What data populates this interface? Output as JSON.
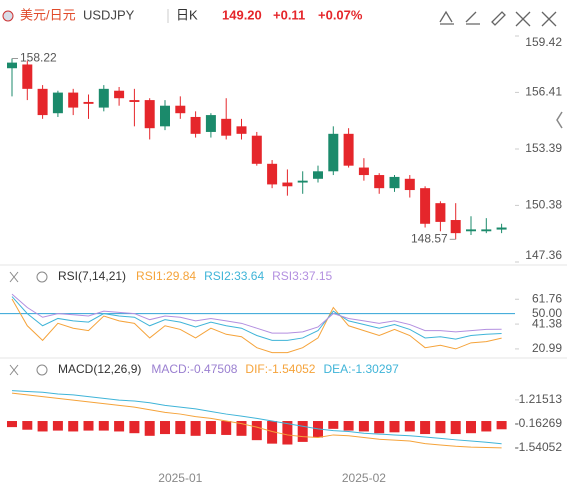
{
  "header": {
    "name": "美元/日元",
    "symbol": "USDJPY",
    "period": "日K",
    "price": "149.20",
    "change": "+0.11",
    "change_pct": "+0.07%"
  },
  "chart_data": [
    {
      "type": "candlestick",
      "up_color": "#1b8a6b",
      "down_color": "#e5262b",
      "categories": [
        null,
        null,
        null,
        null,
        null,
        null,
        null,
        null,
        null,
        null,
        null,
        "2025-01",
        null,
        null,
        null,
        null,
        null,
        null,
        null,
        null,
        null,
        null,
        null,
        "2025-02",
        null,
        null,
        null,
        null,
        null,
        null,
        null,
        null,
        null
      ],
      "candles": [
        {
          "open": 157.7,
          "close": 158.0,
          "high": 158.22,
          "low": 156.2
        },
        {
          "open": 157.9,
          "close": 156.6,
          "high": 158.1,
          "low": 156.0
        },
        {
          "open": 156.6,
          "close": 155.2,
          "high": 156.8,
          "low": 155.0
        },
        {
          "open": 155.3,
          "close": 156.4,
          "high": 156.5,
          "low": 155.1
        },
        {
          "open": 156.4,
          "close": 155.6,
          "high": 156.6,
          "low": 155.2
        },
        {
          "open": 155.9,
          "close": 155.8,
          "high": 156.3,
          "low": 155.0
        },
        {
          "open": 155.6,
          "close": 156.6,
          "high": 156.8,
          "low": 155.4
        },
        {
          "open": 156.5,
          "close": 156.1,
          "high": 156.7,
          "low": 155.7
        },
        {
          "open": 156.0,
          "close": 155.9,
          "high": 156.6,
          "low": 154.6
        },
        {
          "open": 156.0,
          "close": 154.5,
          "high": 156.1,
          "low": 153.9
        },
        {
          "open": 154.6,
          "close": 155.7,
          "high": 156.0,
          "low": 154.4
        },
        {
          "open": 155.7,
          "close": 155.3,
          "high": 156.2,
          "low": 155.0
        },
        {
          "open": 155.1,
          "close": 154.2,
          "high": 155.4,
          "low": 154.0
        },
        {
          "open": 154.3,
          "close": 155.2,
          "high": 155.3,
          "low": 154.0
        },
        {
          "open": 155.0,
          "close": 154.1,
          "high": 156.1,
          "low": 153.9
        },
        {
          "open": 154.6,
          "close": 154.2,
          "high": 155.0,
          "low": 153.9
        },
        {
          "open": 154.1,
          "close": 152.6,
          "high": 154.3,
          "low": 152.5
        },
        {
          "open": 152.6,
          "close": 151.5,
          "high": 152.8,
          "low": 151.3
        },
        {
          "open": 151.6,
          "close": 151.4,
          "high": 152.3,
          "low": 150.9
        },
        {
          "open": 151.6,
          "close": 151.7,
          "high": 152.2,
          "low": 151.0
        },
        {
          "open": 151.8,
          "close": 152.2,
          "high": 152.5,
          "low": 151.6
        },
        {
          "open": 152.2,
          "close": 154.2,
          "high": 154.6,
          "low": 152.0
        },
        {
          "open": 154.2,
          "close": 152.5,
          "high": 154.5,
          "low": 152.4
        },
        {
          "open": 152.4,
          "close": 152.0,
          "high": 152.9,
          "low": 151.7
        },
        {
          "open": 152.0,
          "close": 151.3,
          "high": 152.1,
          "low": 151.0
        },
        {
          "open": 151.3,
          "close": 151.9,
          "high": 152.0,
          "low": 151.1
        },
        {
          "open": 151.8,
          "close": 151.2,
          "high": 152.0,
          "low": 150.8
        },
        {
          "open": 151.3,
          "close": 149.4,
          "high": 151.4,
          "low": 149.2
        },
        {
          "open": 150.5,
          "close": 149.5,
          "high": 150.6,
          "low": 149.0
        },
        {
          "open": 149.6,
          "close": 148.9,
          "high": 150.5,
          "low": 148.57
        },
        {
          "open": 149.0,
          "close": 149.1,
          "high": 149.8,
          "low": 148.8
        },
        {
          "open": 149.0,
          "close": 149.1,
          "high": 149.7,
          "low": 148.9
        },
        {
          "open": 149.09,
          "close": 149.2,
          "high": 149.4,
          "low": 148.9
        }
      ],
      "ylim": [
        147.36,
        159.42
      ],
      "yticks": [
        159.42,
        156.41,
        153.39,
        150.38,
        147.36
      ]
    },
    {
      "type": "line",
      "title": "RSI(7,14,21)",
      "ylim": [
        16,
        71
      ],
      "yticks": [
        61.76,
        {
          "value": 50,
          "label": "50.00",
          "color": "#2fa3d6"
        },
        41.38,
        20.99
      ],
      "series": [
        {
          "name": "RSI1:29.84",
          "color": "#f5a33a",
          "values": [
            62,
            40,
            28,
            42,
            38,
            36,
            48,
            44,
            42,
            30,
            40,
            37,
            30,
            38,
            33,
            31,
            22,
            18,
            18,
            22,
            30,
            55,
            40,
            36,
            32,
            37,
            32,
            22,
            24,
            21,
            26,
            27,
            29.84
          ]
        },
        {
          "name": "RSI2:33.64",
          "color": "#3fb4d8",
          "values": [
            64,
            50,
            40,
            46,
            44,
            43,
            50,
            48,
            47,
            40,
            45,
            43,
            39,
            43,
            40,
            38,
            32,
            28,
            28,
            30,
            36,
            52,
            44,
            41,
            38,
            41,
            37,
            30,
            31,
            29,
            32,
            33,
            33.64
          ]
        },
        {
          "name": "RSI3:37.15",
          "color": "#b38fe0",
          "values": [
            66,
            55,
            47,
            50,
            49,
            48,
            52,
            51,
            50,
            45,
            48,
            47,
            44,
            46,
            44,
            42,
            38,
            34,
            34,
            35,
            39,
            50,
            46,
            44,
            42,
            44,
            41,
            36,
            36,
            35,
            36,
            37,
            37.15
          ]
        }
      ]
    },
    {
      "type": "macd",
      "title": "MACD(12,26,9)",
      "ylim": [
        -2.7,
        2.3
      ],
      "yticks": [
        1.21513,
        -0.16269,
        -1.54052
      ],
      "histogram": {
        "name": "MACD:-0.47508",
        "color": "#e5262b",
        "values": [
          -0.35,
          -0.5,
          -0.6,
          -0.55,
          -0.6,
          -0.55,
          -0.55,
          -0.6,
          -0.7,
          -0.85,
          -0.75,
          -0.75,
          -0.85,
          -0.75,
          -0.8,
          -0.85,
          -1.1,
          -1.3,
          -1.35,
          -1.2,
          -0.95,
          -0.45,
          -0.55,
          -0.6,
          -0.7,
          -0.65,
          -0.6,
          -0.75,
          -0.7,
          -0.75,
          -0.7,
          -0.6,
          -0.47508
        ]
      },
      "series": [
        {
          "name": "DIF:-1.54052",
          "color": "#f5a33a",
          "values": [
            1.6,
            1.5,
            1.4,
            1.3,
            1.2,
            1.1,
            1.0,
            0.9,
            0.8,
            0.65,
            0.5,
            0.4,
            0.25,
            0.15,
            0.0,
            -0.15,
            -0.35,
            -0.6,
            -0.8,
            -0.9,
            -0.95,
            -0.8,
            -0.85,
            -0.95,
            -1.05,
            -1.1,
            -1.15,
            -1.3,
            -1.38,
            -1.45,
            -1.5,
            -1.52,
            -1.54052
          ]
        },
        {
          "name": "DEA:-1.30297",
          "color": "#3fb4d8",
          "values": [
            1.75,
            1.7,
            1.65,
            1.55,
            1.5,
            1.4,
            1.3,
            1.2,
            1.15,
            1.05,
            0.9,
            0.8,
            0.7,
            0.55,
            0.4,
            0.28,
            0.15,
            0.0,
            -0.15,
            -0.3,
            -0.45,
            -0.55,
            -0.6,
            -0.7,
            -0.75,
            -0.8,
            -0.85,
            -0.92,
            -1.0,
            -1.08,
            -1.15,
            -1.22,
            -1.30297
          ]
        }
      ]
    }
  ]
}
